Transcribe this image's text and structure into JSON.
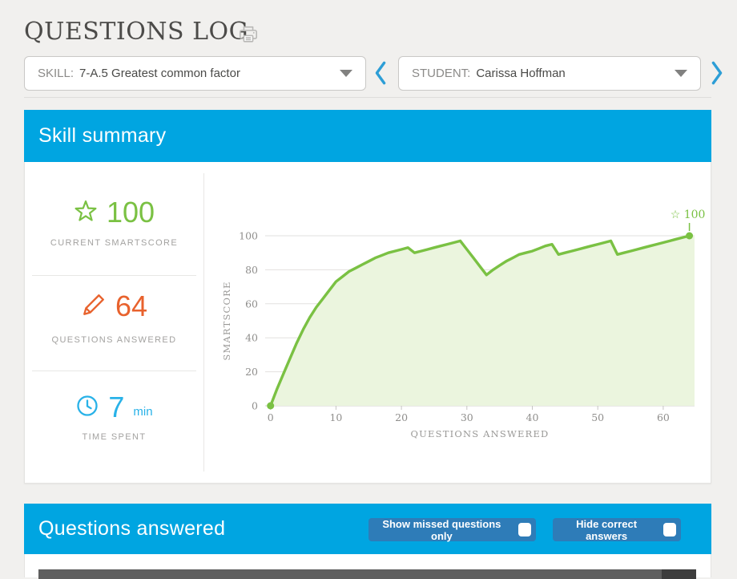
{
  "header": {
    "title": "QUESTIONS LOG"
  },
  "filters": {
    "skill": {
      "label": "SKILL:",
      "value": "7-A.5 Greatest common factor"
    },
    "student": {
      "label": "STUDENT:",
      "value": "Carissa Hoffman"
    }
  },
  "skill_summary": {
    "title": "Skill summary",
    "stats": [
      {
        "icon": "star-icon",
        "value": "100",
        "unit": "",
        "label": "CURRENT SMARTSCORE"
      },
      {
        "icon": "pencil-icon",
        "value": "64",
        "unit": "",
        "label": "QUESTIONS ANSWERED"
      },
      {
        "icon": "clock-icon",
        "value": "7",
        "unit": "min",
        "label": "TIME SPENT"
      }
    ]
  },
  "chart_data": {
    "type": "area",
    "title": "",
    "xlabel": "QUESTIONS ANSWERED",
    "ylabel": "SMARTSCORE",
    "xlim": [
      0,
      65
    ],
    "ylim": [
      0,
      100
    ],
    "x_ticks": [
      0,
      10,
      20,
      30,
      40,
      50,
      60
    ],
    "y_ticks": [
      0,
      20,
      40,
      60,
      80,
      100
    ],
    "grid": "horizontal",
    "legend": "none",
    "line_color": "#7ac143",
    "fill_color": "#ebf5de",
    "end_annotation": {
      "icon": "star-icon",
      "value": "100"
    },
    "x": [
      0,
      1,
      2,
      3,
      4,
      5,
      6,
      7,
      8,
      9,
      10,
      11,
      12,
      13,
      14,
      15,
      16,
      17,
      18,
      19,
      20,
      21,
      22,
      23,
      24,
      25,
      26,
      27,
      28,
      29,
      30,
      31,
      32,
      33,
      34,
      35,
      36,
      37,
      38,
      39,
      40,
      41,
      42,
      43,
      44,
      45,
      46,
      47,
      48,
      49,
      50,
      51,
      52,
      53,
      54,
      55,
      56,
      57,
      58,
      59,
      60,
      61,
      62,
      63,
      64
    ],
    "y": [
      0,
      10,
      19,
      28,
      37,
      45,
      52,
      58,
      63,
      68,
      73,
      76,
      79,
      81,
      83,
      85,
      87,
      88.5,
      90,
      91,
      92,
      93,
      90,
      91,
      92,
      93,
      94,
      95,
      96,
      97,
      92,
      87,
      82,
      77,
      80,
      82.5,
      85,
      87,
      89,
      90,
      91,
      92.5,
      94,
      95,
      89,
      90,
      91,
      92,
      93,
      94,
      95,
      96,
      97,
      89,
      90,
      91,
      92,
      93,
      94,
      95,
      96,
      97,
      98,
      99,
      100
    ]
  },
  "questions_answered": {
    "title": "Questions answered",
    "buttons": [
      {
        "label": "Show missed questions only",
        "checked": false
      },
      {
        "label": "Hide correct answers",
        "checked": false
      }
    ]
  },
  "colors": {
    "section_blue": "#00a5e1",
    "button_blue": "#2e7cb8",
    "score_green": "#7ac143",
    "answered_orange": "#e8622d",
    "time_blue": "#29b2e8"
  }
}
